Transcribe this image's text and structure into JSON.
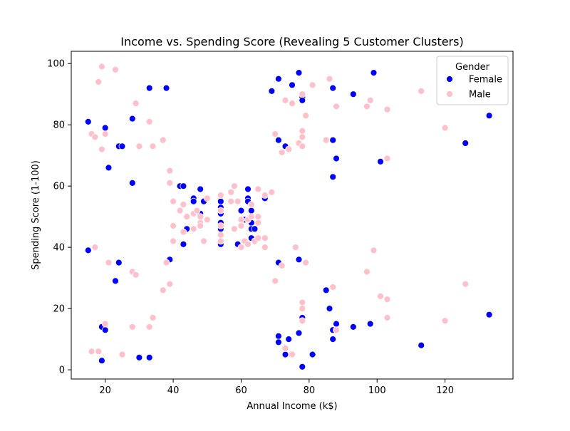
{
  "chart_data": {
    "type": "scatter",
    "title": "Income vs. Spending Score (Revealing 5 Customer Clusters)",
    "xlabel": "Annual Income (k$)",
    "ylabel": "Spending Score (1-100)",
    "xlim": [
      10,
      140
    ],
    "ylim": [
      -3,
      104
    ],
    "xticks": [
      20,
      40,
      60,
      80,
      100,
      120
    ],
    "yticks": [
      0,
      20,
      40,
      60,
      80,
      100
    ],
    "grid": false,
    "legend": {
      "title": "Gender",
      "placement": "top-right",
      "entries": [
        "Female",
        "Male"
      ]
    },
    "series": [
      {
        "name": "Female",
        "color": "#0000ff",
        "points": [
          [
            15,
            81
          ],
          [
            15,
            39
          ],
          [
            19,
            3
          ],
          [
            19,
            14
          ],
          [
            20,
            79
          ],
          [
            20,
            13
          ],
          [
            21,
            66
          ],
          [
            23,
            29
          ],
          [
            24,
            73
          ],
          [
            24,
            35
          ],
          [
            25,
            73
          ],
          [
            28,
            82
          ],
          [
            28,
            61
          ],
          [
            30,
            4
          ],
          [
            33,
            92
          ],
          [
            33,
            4
          ],
          [
            38,
            92
          ],
          [
            39,
            36
          ],
          [
            42,
            60
          ],
          [
            43,
            60
          ],
          [
            43,
            41
          ],
          [
            44,
            46
          ],
          [
            46,
            56
          ],
          [
            46,
            55
          ],
          [
            46,
            46
          ],
          [
            47,
            52
          ],
          [
            48,
            59
          ],
          [
            48,
            51
          ],
          [
            49,
            55
          ],
          [
            54,
            55
          ],
          [
            54,
            51
          ],
          [
            54,
            48
          ],
          [
            54,
            46
          ],
          [
            54,
            41
          ],
          [
            54,
            53
          ],
          [
            59,
            41
          ],
          [
            60,
            52
          ],
          [
            61,
            49
          ],
          [
            61,
            42
          ],
          [
            62,
            59
          ],
          [
            62,
            56
          ],
          [
            62,
            55
          ],
          [
            63,
            52
          ],
          [
            63,
            48
          ],
          [
            63,
            46
          ],
          [
            63,
            43
          ],
          [
            64,
            46
          ],
          [
            65,
            48
          ],
          [
            67,
            56
          ],
          [
            69,
            91
          ],
          [
            71,
            95
          ],
          [
            71,
            75
          ],
          [
            71,
            35
          ],
          [
            71,
            11
          ],
          [
            71,
            9
          ],
          [
            73,
            73
          ],
          [
            73,
            5
          ],
          [
            74,
            10
          ],
          [
            75,
            93
          ],
          [
            77,
            97
          ],
          [
            77,
            36
          ],
          [
            77,
            12
          ],
          [
            78,
            89
          ],
          [
            78,
            88
          ],
          [
            78,
            17
          ],
          [
            78,
            1
          ],
          [
            81,
            5
          ],
          [
            85,
            26
          ],
          [
            86,
            20
          ],
          [
            87,
            92
          ],
          [
            87,
            75
          ],
          [
            87,
            63
          ],
          [
            87,
            13
          ],
          [
            87,
            10
          ],
          [
            88,
            69
          ],
          [
            88,
            15
          ],
          [
            93,
            90
          ],
          [
            93,
            14
          ],
          [
            98,
            15
          ],
          [
            99,
            97
          ],
          [
            101,
            68
          ],
          [
            113,
            8
          ],
          [
            126,
            74
          ],
          [
            133,
            83
          ],
          [
            133,
            18
          ]
        ]
      },
      {
        "name": "Male",
        "color": "#ffc0cb",
        "points": [
          [
            16,
            77
          ],
          [
            16,
            6
          ],
          [
            17,
            76
          ],
          [
            17,
            40
          ],
          [
            18,
            94
          ],
          [
            18,
            6
          ],
          [
            19,
            99
          ],
          [
            19,
            72
          ],
          [
            20,
            77
          ],
          [
            20,
            15
          ],
          [
            21,
            35
          ],
          [
            23,
            98
          ],
          [
            25,
            5
          ],
          [
            28,
            32
          ],
          [
            28,
            14
          ],
          [
            29,
            87
          ],
          [
            29,
            31
          ],
          [
            30,
            73
          ],
          [
            33,
            81
          ],
          [
            33,
            14
          ],
          [
            34,
            73
          ],
          [
            34,
            17
          ],
          [
            37,
            75
          ],
          [
            37,
            26
          ],
          [
            38,
            35
          ],
          [
            39,
            65
          ],
          [
            39,
            61
          ],
          [
            39,
            28
          ],
          [
            40,
            55
          ],
          [
            40,
            47
          ],
          [
            40,
            42
          ],
          [
            42,
            52
          ],
          [
            43,
            54
          ],
          [
            43,
            45
          ],
          [
            44,
            50
          ],
          [
            46,
            51
          ],
          [
            46,
            46
          ],
          [
            47,
            52
          ],
          [
            48,
            50
          ],
          [
            48,
            48
          ],
          [
            48,
            47
          ],
          [
            49,
            42
          ],
          [
            50,
            56
          ],
          [
            50,
            49
          ],
          [
            54,
            57
          ],
          [
            54,
            52
          ],
          [
            54,
            47
          ],
          [
            54,
            44
          ],
          [
            54,
            42
          ],
          [
            57,
            55
          ],
          [
            57,
            58
          ],
          [
            58,
            60
          ],
          [
            58,
            46
          ],
          [
            59,
            55
          ],
          [
            60,
            49
          ],
          [
            60,
            47
          ],
          [
            60,
            40
          ],
          [
            61,
            42
          ],
          [
            62,
            41
          ],
          [
            62,
            49
          ],
          [
            63,
            54
          ],
          [
            63,
            50
          ],
          [
            64,
            42
          ],
          [
            65,
            59
          ],
          [
            65,
            50
          ],
          [
            65,
            48
          ],
          [
            65,
            43
          ],
          [
            67,
            57
          ],
          [
            67,
            43
          ],
          [
            67,
            40
          ],
          [
            69,
            58
          ],
          [
            70,
            77
          ],
          [
            70,
            29
          ],
          [
            72,
            71
          ],
          [
            72,
            34
          ],
          [
            73,
            88
          ],
          [
            73,
            7
          ],
          [
            74,
            72
          ],
          [
            75,
            87
          ],
          [
            75,
            5
          ],
          [
            76,
            40
          ],
          [
            77,
            74
          ],
          [
            78,
            90
          ],
          [
            78,
            78
          ],
          [
            78,
            76
          ],
          [
            78,
            73
          ],
          [
            78,
            22
          ],
          [
            78,
            20
          ],
          [
            78,
            16
          ],
          [
            79,
            83
          ],
          [
            79,
            35
          ],
          [
            81,
            93
          ],
          [
            85,
            75
          ],
          [
            86,
            95
          ],
          [
            87,
            27
          ],
          [
            88,
            86
          ],
          [
            88,
            13
          ],
          [
            97,
            86
          ],
          [
            97,
            32
          ],
          [
            98,
            88
          ],
          [
            99,
            39
          ],
          [
            101,
            24
          ],
          [
            103,
            85
          ],
          [
            103,
            69
          ],
          [
            103,
            23
          ],
          [
            103,
            17
          ],
          [
            113,
            91
          ],
          [
            120,
            79
          ],
          [
            120,
            16
          ],
          [
            126,
            28
          ]
        ]
      }
    ]
  }
}
